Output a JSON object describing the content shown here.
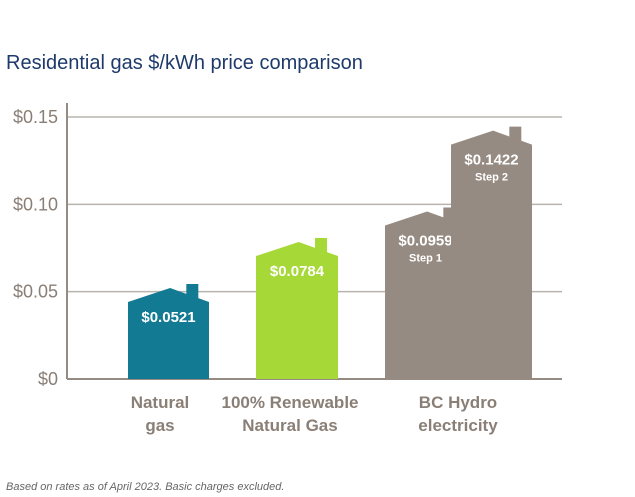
{
  "chart_data": {
    "type": "bar",
    "title": "Residential gas $/kWh price comparison",
    "ylim": [
      0,
      0.15
    ],
    "y_ticks": [
      "$0",
      "$0.05",
      "$0.10",
      "$0.15"
    ],
    "y_tick_values": [
      0,
      0.05,
      0.1,
      0.15
    ],
    "grid": true,
    "categories": [
      {
        "label_lines": [
          "Natural",
          "gas"
        ]
      },
      {
        "label_lines": [
          "100% Renewable",
          "Natural Gas"
        ]
      },
      {
        "label_lines": [
          "BC Hydro",
          "electricity"
        ]
      }
    ],
    "bars": [
      {
        "category": 0,
        "value": 0.0521,
        "value_label": "$0.0521",
        "sub_label": "",
        "color": "#137a93"
      },
      {
        "category": 1,
        "value": 0.0784,
        "value_label": "$0.0784",
        "sub_label": "",
        "color": "#a6d937"
      },
      {
        "category": 2,
        "value": 0.0959,
        "value_label": "$0.0959",
        "sub_label": "Step 1",
        "color": "#968b82"
      },
      {
        "category": 2,
        "value": 0.1422,
        "value_label": "$0.1422",
        "sub_label": "Step 2",
        "color": "#968b82"
      }
    ],
    "axis_color": "#968b82",
    "grid_color": "#b9b3ad"
  },
  "footnote": "Based on rates as of April 2023. Basic charges excluded."
}
